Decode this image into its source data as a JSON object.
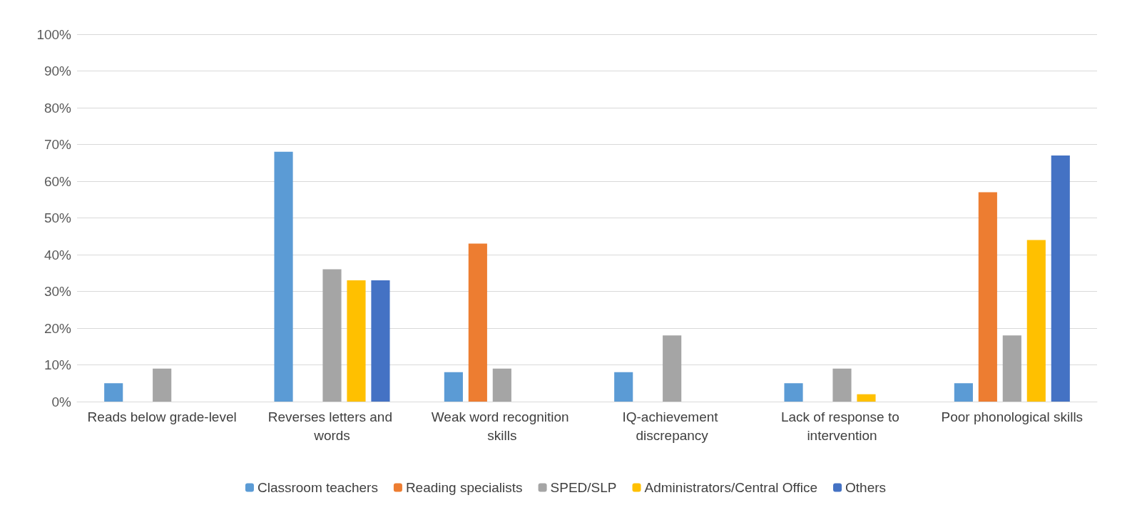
{
  "chart_data": {
    "type": "bar",
    "categories": [
      "Reads below grade-level",
      "Reverses letters and words",
      "Weak word recognition skills",
      "IQ-achievement discrepancy",
      "Lack of response to intervention",
      "Poor phonological skills"
    ],
    "series": [
      {
        "name": "Classroom teachers",
        "color": "#5b9bd5",
        "values": [
          5,
          68,
          8,
          8,
          5,
          5
        ]
      },
      {
        "name": "Reading specialists",
        "color": "#ed7d31",
        "values": [
          0,
          0,
          43,
          0,
          0,
          57
        ]
      },
      {
        "name": "SPED/SLP",
        "color": "#a5a5a5",
        "values": [
          9,
          36,
          9,
          18,
          9,
          18
        ]
      },
      {
        "name": "Administrators/Central Office",
        "color": "#ffc000",
        "values": [
          0,
          33,
          0,
          0,
          2,
          44
        ]
      },
      {
        "name": "Others",
        "color": "#4472c4",
        "values": [
          0,
          33,
          0,
          0,
          0,
          67
        ]
      }
    ],
    "ylim": [
      0,
      100
    ],
    "yticks": [
      {
        "value": 0,
        "label": "0%"
      },
      {
        "value": 10,
        "label": "10%"
      },
      {
        "value": 20,
        "label": "20%"
      },
      {
        "value": 30,
        "label": "30%"
      },
      {
        "value": 40,
        "label": "40%"
      },
      {
        "value": 50,
        "label": "50%"
      },
      {
        "value": 60,
        "label": "60%"
      },
      {
        "value": 70,
        "label": "70%"
      },
      {
        "value": 80,
        "label": "80%"
      },
      {
        "value": 90,
        "label": "90%"
      },
      {
        "value": 100,
        "label": "100%"
      }
    ],
    "grid": "y",
    "legend": "bottom"
  }
}
